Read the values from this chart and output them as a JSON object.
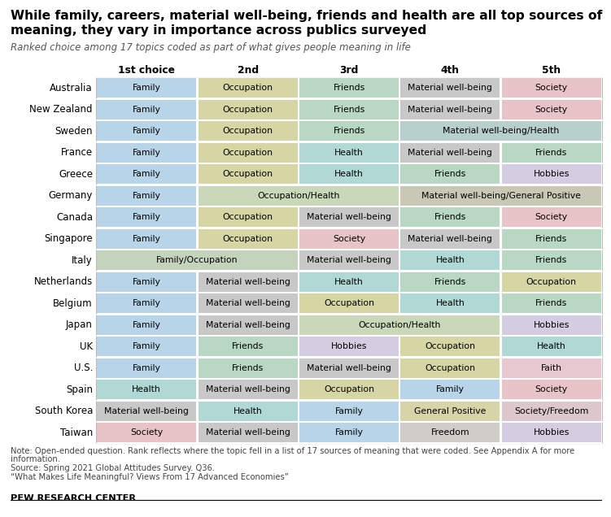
{
  "title_line1": "While family, careers, material well-being, friends and health are all top sources of",
  "title_line2": "meaning, they vary in importance across publics surveyed",
  "subtitle": "Ranked choice among 17 topics coded as part of what gives people meaning in life",
  "col_headers": [
    "1st choice",
    "2nd",
    "3rd",
    "4th",
    "5th"
  ],
  "countries": [
    "Australia",
    "New Zealand",
    "Sweden",
    "France",
    "Greece",
    "Germany",
    "Canada",
    "Singapore",
    "Italy",
    "Netherlands",
    "Belgium",
    "Japan",
    "UK",
    "U.S.",
    "Spain",
    "South Korea",
    "Taiwan"
  ],
  "table": [
    [
      [
        "Family",
        "family"
      ],
      [
        "Occupation",
        "occupation"
      ],
      [
        "Friends",
        "friends"
      ],
      [
        "Material well-being",
        "material"
      ],
      [
        "Society",
        "society"
      ]
    ],
    [
      [
        "Family",
        "family"
      ],
      [
        "Occupation",
        "occupation"
      ],
      [
        "Friends",
        "friends"
      ],
      [
        "Material well-being",
        "material"
      ],
      [
        "Society",
        "society"
      ]
    ],
    [
      [
        "Family",
        "family"
      ],
      [
        "Occupation",
        "occupation"
      ],
      [
        "Friends",
        "friends"
      ],
      [
        "Material well-being/Health",
        "material_health"
      ],
      null
    ],
    [
      [
        "Family",
        "family"
      ],
      [
        "Occupation",
        "occupation"
      ],
      [
        "Health",
        "health"
      ],
      [
        "Material well-being",
        "material"
      ],
      [
        "Friends",
        "friends"
      ]
    ],
    [
      [
        "Family",
        "family"
      ],
      [
        "Occupation",
        "occupation"
      ],
      [
        "Health",
        "health"
      ],
      [
        "Friends",
        "friends"
      ],
      [
        "Hobbies",
        "hobbies"
      ]
    ],
    [
      [
        "Family",
        "family"
      ],
      [
        "Occupation/Health",
        "occupation_health"
      ],
      null,
      [
        "Material well-being/General Positive",
        "material_general"
      ],
      null
    ],
    [
      [
        "Family",
        "family"
      ],
      [
        "Occupation",
        "occupation"
      ],
      [
        "Material well-being",
        "material"
      ],
      [
        "Friends",
        "friends"
      ],
      [
        "Society",
        "society"
      ]
    ],
    [
      [
        "Family",
        "family"
      ],
      [
        "Occupation",
        "occupation"
      ],
      [
        "Society",
        "society"
      ],
      [
        "Material well-being",
        "material"
      ],
      [
        "Friends",
        "friends"
      ]
    ],
    [
      [
        "Family/Occupation",
        "family_occupation"
      ],
      null,
      [
        "Material well-being",
        "material"
      ],
      [
        "Health",
        "health"
      ],
      [
        "Friends",
        "friends"
      ]
    ],
    [
      [
        "Family",
        "family"
      ],
      [
        "Material well-being",
        "material"
      ],
      [
        "Health",
        "health"
      ],
      [
        "Friends",
        "friends"
      ],
      [
        "Occupation",
        "occupation"
      ]
    ],
    [
      [
        "Family",
        "family"
      ],
      [
        "Material well-being",
        "material"
      ],
      [
        "Occupation",
        "occupation"
      ],
      [
        "Health",
        "health"
      ],
      [
        "Friends",
        "friends"
      ]
    ],
    [
      [
        "Family",
        "family"
      ],
      [
        "Material well-being",
        "material"
      ],
      [
        "Occupation/Health",
        "occupation_health"
      ],
      null,
      [
        "Hobbies",
        "hobbies"
      ]
    ],
    [
      [
        "Family",
        "family"
      ],
      [
        "Friends",
        "friends"
      ],
      [
        "Hobbies",
        "hobbies"
      ],
      [
        "Occupation",
        "occupation"
      ],
      [
        "Health",
        "health"
      ]
    ],
    [
      [
        "Family",
        "family"
      ],
      [
        "Friends",
        "friends"
      ],
      [
        "Material well-being",
        "material"
      ],
      [
        "Occupation",
        "occupation"
      ],
      [
        "Faith",
        "faith"
      ]
    ],
    [
      [
        "Health",
        "health"
      ],
      [
        "Material well-being",
        "material"
      ],
      [
        "Occupation",
        "occupation"
      ],
      [
        "Family",
        "family"
      ],
      [
        "Society",
        "society"
      ]
    ],
    [
      [
        "Material well-being",
        "material"
      ],
      [
        "Health",
        "health"
      ],
      [
        "Family",
        "family"
      ],
      [
        "General Positive",
        "general"
      ],
      [
        "Society/Freedom",
        "society_freedom"
      ]
    ],
    [
      [
        "Society",
        "society"
      ],
      [
        "Material well-being",
        "material"
      ],
      [
        "Family",
        "family"
      ],
      [
        "Freedom",
        "freedom"
      ],
      [
        "Hobbies",
        "hobbies"
      ]
    ]
  ],
  "colors": {
    "family": "#b8d4e8",
    "occupation": "#d6d6a4",
    "friends": "#b8d8c4",
    "material": "#c8c8c8",
    "health": "#b0d8d4",
    "society": "#e8c4c8",
    "hobbies": "#d4cce0",
    "faith": "#e8c8d0",
    "general": "#d8d4a8",
    "freedom": "#d0ccc8",
    "family_occupation": "#c4d4bc",
    "occupation_health": "#c8d8b8",
    "material_health": "#b8d0cc",
    "material_general": "#c8c8b4",
    "society_freedom": "#dcc8cc"
  },
  "note1": "Note: Open-ended question. Rank reflects where the topic fell in a list of 17 sources of meaning that were coded. See Appendix A for more",
  "note2": "information.",
  "note3": "Source: Spring 2021 Global Attitudes Survey. Q36.",
  "note4": "“What Makes Life Meaningful? Views From 17 Advanced Economies”",
  "footer": "PEW RESEARCH CENTER",
  "fig_width": 7.51,
  "fig_height": 6.36,
  "dpi": 100
}
